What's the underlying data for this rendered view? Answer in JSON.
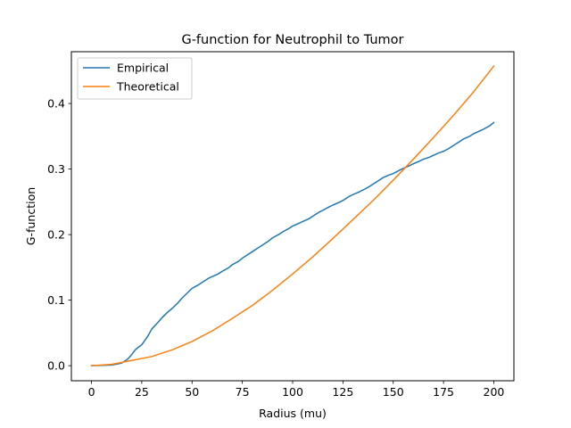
{
  "chart_data": {
    "type": "line",
    "title": "G-function for Neutrophil to Tumor",
    "xlabel": "Radius (mu)",
    "ylabel": "G-function",
    "xlim": [
      -10,
      210
    ],
    "ylim": [
      -0.023,
      0.479
    ],
    "xticks": [
      0,
      25,
      50,
      75,
      100,
      125,
      150,
      175,
      200
    ],
    "xtick_labels": [
      "0",
      "25",
      "50",
      "75",
      "100",
      "125",
      "150",
      "175",
      "200"
    ],
    "yticks": [
      0.0,
      0.1,
      0.2,
      0.3,
      0.4
    ],
    "ytick_labels": [
      "0.0",
      "0.1",
      "0.2",
      "0.3",
      "0.4"
    ],
    "grid": false,
    "legend_position": "upper-left",
    "series": [
      {
        "name": "Empirical",
        "color": "#1f77b4",
        "x": [
          0,
          5,
          10,
          12,
          15,
          18,
          20,
          22,
          25,
          28,
          30,
          33,
          35,
          38,
          40,
          43,
          45,
          48,
          50,
          53,
          55,
          58,
          60,
          63,
          65,
          68,
          70,
          73,
          75,
          78,
          80,
          83,
          85,
          88,
          90,
          93,
          95,
          98,
          100,
          103,
          105,
          108,
          110,
          113,
          115,
          118,
          120,
          123,
          125,
          128,
          130,
          133,
          135,
          138,
          140,
          143,
          145,
          148,
          150,
          153,
          155,
          158,
          160,
          163,
          165,
          168,
          170,
          173,
          175,
          178,
          180,
          183,
          185,
          188,
          190,
          193,
          195,
          198,
          200
        ],
        "y": [
          0.0,
          0.0005,
          0.001,
          0.002,
          0.004,
          0.01,
          0.017,
          0.025,
          0.032,
          0.045,
          0.056,
          0.066,
          0.073,
          0.082,
          0.087,
          0.096,
          0.103,
          0.112,
          0.118,
          0.123,
          0.127,
          0.133,
          0.136,
          0.14,
          0.144,
          0.149,
          0.154,
          0.159,
          0.164,
          0.17,
          0.174,
          0.18,
          0.184,
          0.19,
          0.195,
          0.2,
          0.204,
          0.209,
          0.213,
          0.217,
          0.22,
          0.224,
          0.228,
          0.234,
          0.237,
          0.242,
          0.245,
          0.249,
          0.252,
          0.258,
          0.261,
          0.265,
          0.268,
          0.273,
          0.277,
          0.283,
          0.287,
          0.291,
          0.293,
          0.298,
          0.301,
          0.305,
          0.308,
          0.312,
          0.315,
          0.318,
          0.321,
          0.325,
          0.327,
          0.332,
          0.336,
          0.342,
          0.346,
          0.35,
          0.354,
          0.358,
          0.361,
          0.366,
          0.371
        ]
      },
      {
        "name": "Theoretical",
        "color": "#ff7f0e",
        "x": [
          0,
          10,
          20,
          30,
          40,
          50,
          60,
          70,
          80,
          90,
          100,
          110,
          120,
          130,
          140,
          150,
          160,
          170,
          180,
          190,
          200
        ],
        "y": [
          0.0,
          0.002,
          0.008,
          0.014,
          0.024,
          0.037,
          0.053,
          0.072,
          0.092,
          0.115,
          0.14,
          0.166,
          0.194,
          0.223,
          0.252,
          0.283,
          0.315,
          0.348,
          0.382,
          0.418,
          0.457
        ]
      }
    ]
  }
}
